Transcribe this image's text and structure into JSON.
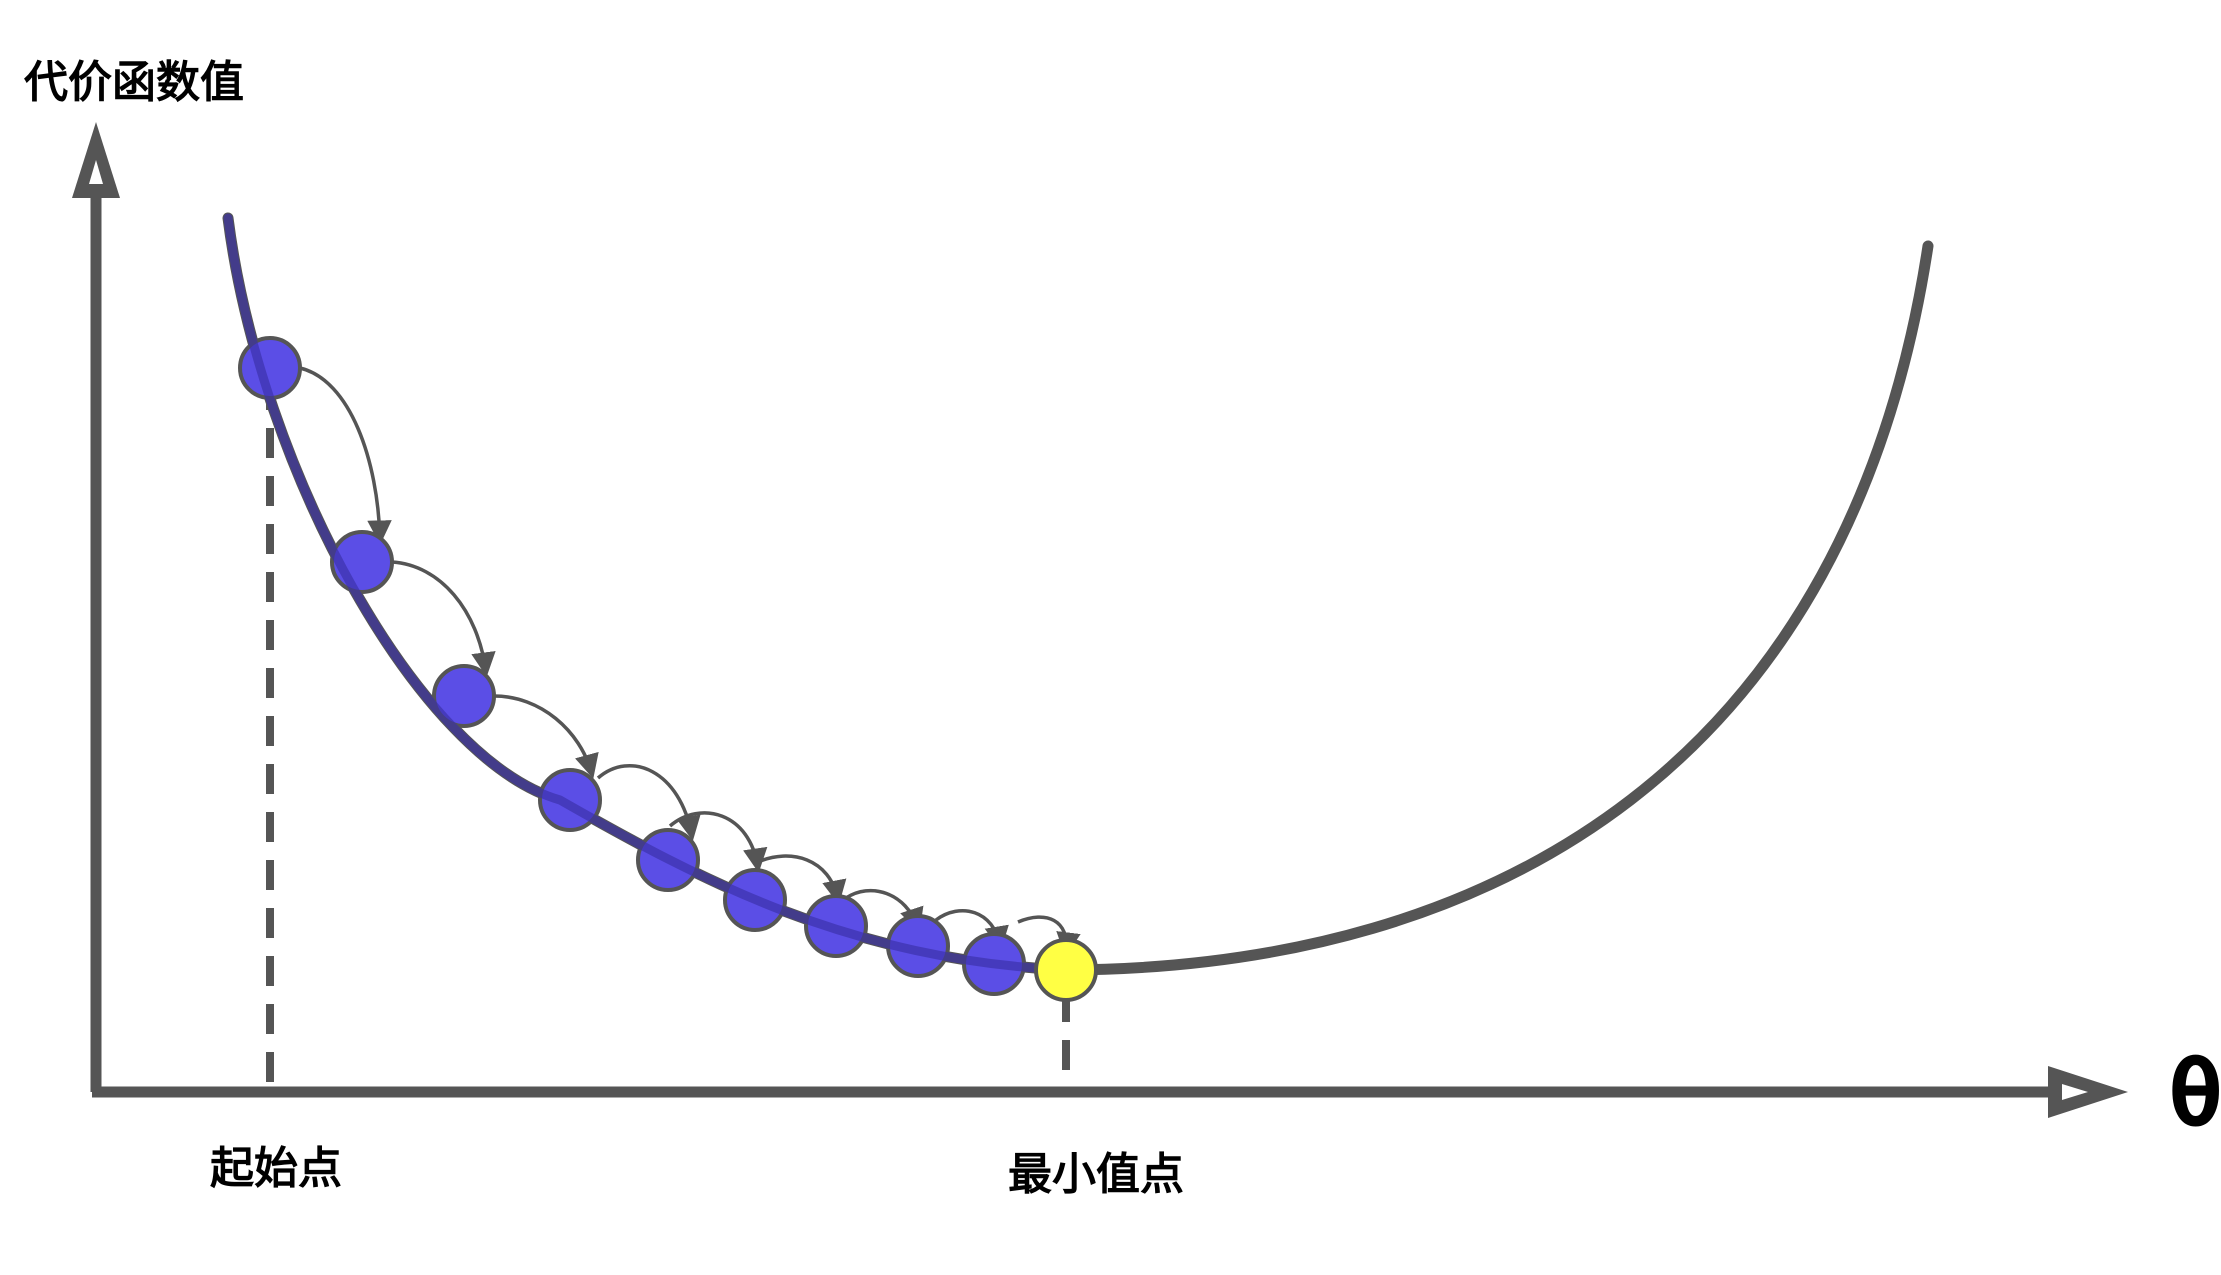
{
  "labels": {
    "y_axis": "代价函数值",
    "x_axis": "θ",
    "start": "起始点",
    "minimum": "最小值点"
  },
  "colors": {
    "axis": "#555555",
    "curve": "#555555",
    "step_point": "#5b4ee6",
    "minimum_point": "#ffff44",
    "arrow": "#555555"
  },
  "steps": {
    "count": 9
  }
}
